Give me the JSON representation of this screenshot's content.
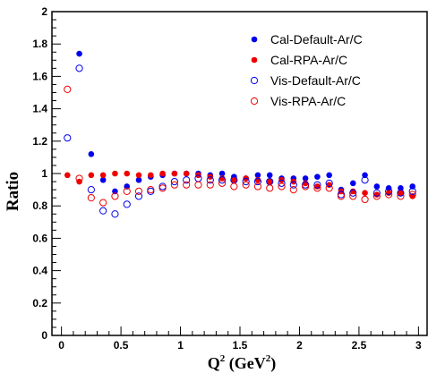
{
  "chart_data": {
    "type": "scatter",
    "xlabel": "Q",
    "xlabel_sup1": "2",
    "xlabel_unit": "(GeV",
    "xlabel_sup2": "2",
    "xlabel_close": ")",
    "ylabel": "Ratio",
    "xlim": [
      -0.08,
      3.08
    ],
    "ylim": [
      0,
      2
    ],
    "x_ticks": [
      0,
      0.5,
      1,
      1.5,
      2,
      2.5,
      3
    ],
    "x_tick_labels": [
      "0",
      "0.5",
      "1",
      "1.5",
      "2",
      "2.5",
      "3"
    ],
    "y_ticks": [
      0,
      0.2,
      0.4,
      0.6,
      0.8,
      1,
      1.2,
      1.4,
      1.6,
      1.8,
      2
    ],
    "y_tick_labels": [
      "0",
      "0.2",
      "0.4",
      "0.6",
      "0.8",
      "1",
      "1.2",
      "1.4",
      "1.6",
      "1.8",
      "2"
    ],
    "grid": false,
    "legend_position": "top-right",
    "x": [
      0.05,
      0.15,
      0.25,
      0.35,
      0.45,
      0.55,
      0.65,
      0.75,
      0.85,
      0.95,
      1.05,
      1.15,
      1.25,
      1.35,
      1.45,
      1.55,
      1.65,
      1.75,
      1.85,
      1.95,
      2.05,
      2.15,
      2.25,
      2.35,
      2.45,
      2.55,
      2.65,
      2.75,
      2.85,
      2.95
    ],
    "series": [
      {
        "name": "Cal-Default-Ar/C",
        "color": "#0000ee",
        "filled": true,
        "values": [
          null,
          1.74,
          1.12,
          0.96,
          0.89,
          0.92,
          0.96,
          0.98,
          0.99,
          1.0,
          1.0,
          1.0,
          0.99,
          1.0,
          0.98,
          0.97,
          0.99,
          0.99,
          0.97,
          0.97,
          0.97,
          0.98,
          0.99,
          0.9,
          0.94,
          0.99,
          0.92,
          0.91,
          0.91,
          0.92
        ]
      },
      {
        "name": "Cal-RPA-Ar/C",
        "color": "#ee0000",
        "filled": true,
        "values": [
          0.99,
          0.95,
          0.99,
          0.99,
          1.0,
          1.0,
          0.99,
          0.99,
          1.0,
          1.0,
          1.0,
          0.99,
          0.98,
          0.97,
          0.96,
          0.97,
          0.96,
          0.95,
          0.96,
          0.95,
          0.94,
          0.92,
          0.93,
          0.89,
          0.89,
          0.88,
          0.87,
          0.88,
          0.88,
          0.86
        ]
      },
      {
        "name": "Vis-Default-Ar/C",
        "color": "#0000ee",
        "filled": false,
        "values": [
          1.22,
          1.65,
          0.9,
          0.77,
          0.75,
          0.81,
          0.86,
          0.89,
          0.92,
          0.95,
          0.96,
          0.97,
          0.96,
          0.96,
          0.96,
          0.95,
          0.95,
          0.95,
          0.94,
          0.93,
          0.93,
          0.93,
          0.94,
          0.87,
          0.88,
          0.96,
          0.88,
          0.89,
          0.88,
          0.89
        ]
      },
      {
        "name": "Vis-RPA-Ar/C",
        "color": "#ee0000",
        "filled": false,
        "values": [
          1.52,
          0.97,
          0.85,
          0.82,
          0.86,
          0.89,
          0.89,
          0.9,
          0.91,
          0.93,
          0.93,
          0.93,
          0.93,
          0.94,
          0.92,
          0.93,
          0.92,
          0.91,
          0.92,
          0.9,
          0.92,
          0.91,
          0.91,
          0.86,
          0.86,
          0.84,
          0.86,
          0.87,
          0.86,
          0.87
        ]
      }
    ]
  }
}
